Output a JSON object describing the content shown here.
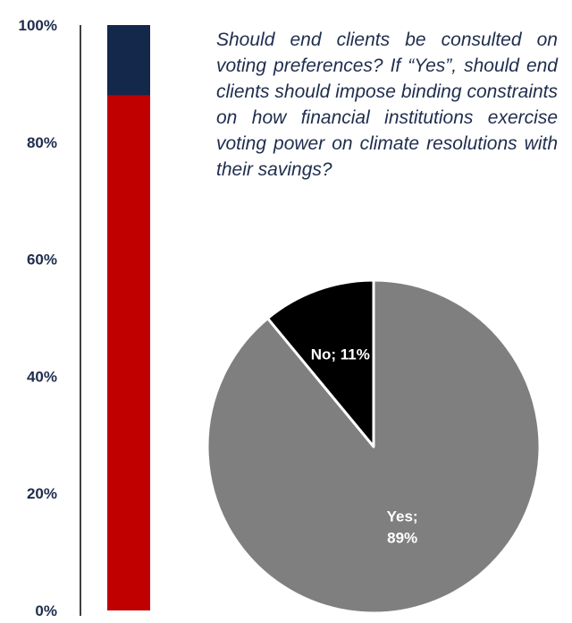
{
  "chart_data": [
    {
      "type": "bar",
      "stacked": true,
      "categories": [
        ""
      ],
      "series": [
        {
          "values": [
            88
          ],
          "color": "#c00000"
        },
        {
          "values": [
            12
          ],
          "color": "#13284a"
        }
      ],
      "y_ticks": [
        "0%",
        "20%",
        "40%",
        "60%",
        "80%",
        "100%"
      ],
      "ylim": [
        0,
        100
      ],
      "grid": false
    },
    {
      "type": "pie",
      "title": "Should end clients be consulted on voting preferences? If “Yes”, should end clients should impose binding constraints on how financial institutions exercise voting power on climate resolutions with their savings?",
      "slices": [
        {
          "label": "No; 11%",
          "value": 11,
          "color": "#000000",
          "text_color": "#ffffff"
        },
        {
          "label": "Yes; 89%",
          "label_lines": [
            "Yes;",
            "89%"
          ],
          "value": 89,
          "color": "#7f7f7f",
          "text_color": "#ffffff"
        }
      ]
    }
  ]
}
